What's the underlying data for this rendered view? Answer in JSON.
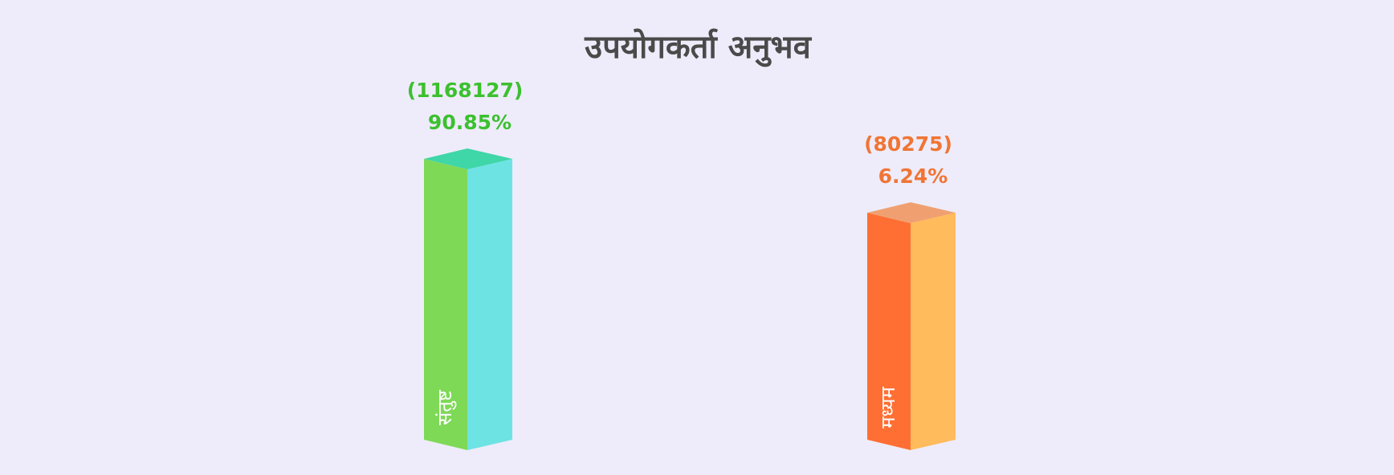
{
  "chart_data": {
    "type": "bar3d",
    "title": "उपयोगकर्ता अनुभव",
    "categories": [
      "संतुष्ट",
      "मध्यम"
    ],
    "values": [
      1168127,
      80275
    ],
    "value_labels": [
      "(1168127)",
      "(80275)"
    ],
    "percentages": [
      90.85,
      6.24
    ],
    "percentage_labels": [
      "90.85%",
      "6.24%"
    ],
    "log_scale": true,
    "colors": [
      {
        "front": "#7ed957",
        "side": "#6de3e3",
        "top": "#3fd6a8",
        "label": "#3cc02f"
      },
      {
        "front": "#ff6f33",
        "side": "#ffbb5c",
        "top": "#f0a070",
        "label": "#f07535"
      }
    ]
  }
}
